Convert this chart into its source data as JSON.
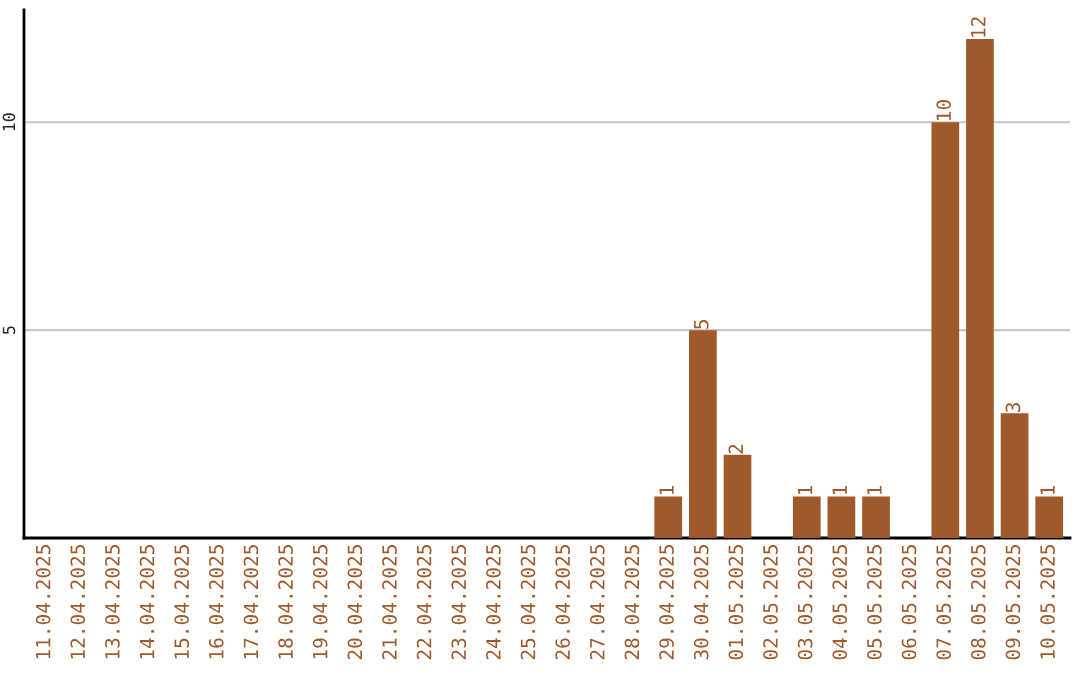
{
  "chart_data": {
    "type": "bar",
    "categories": [
      "11.04.2025",
      "12.04.2025",
      "13.04.2025",
      "14.04.2025",
      "15.04.2025",
      "16.04.2025",
      "17.04.2025",
      "18.04.2025",
      "19.04.2025",
      "20.04.2025",
      "21.04.2025",
      "22.04.2025",
      "23.04.2025",
      "24.04.2025",
      "25.04.2025",
      "26.04.2025",
      "27.04.2025",
      "28.04.2025",
      "29.04.2025",
      "30.04.2025",
      "01.05.2025",
      "02.05.2025",
      "03.05.2025",
      "04.05.2025",
      "05.05.2025",
      "06.05.2025",
      "07.05.2025",
      "08.05.2025",
      "09.05.2025",
      "10.05.2025"
    ],
    "values": [
      0,
      0,
      0,
      0,
      0,
      0,
      0,
      0,
      0,
      0,
      0,
      0,
      0,
      0,
      0,
      0,
      0,
      0,
      1,
      5,
      2,
      0,
      1,
      1,
      1,
      0,
      10,
      12,
      3,
      1
    ],
    "value_labels": [
      null,
      null,
      null,
      null,
      null,
      null,
      null,
      null,
      null,
      null,
      null,
      null,
      null,
      null,
      null,
      null,
      null,
      null,
      "1",
      "5",
      "2",
      null,
      "1",
      "1",
      "1",
      null,
      "10",
      "12",
      "3",
      "1"
    ],
    "color": "#a0592a",
    "ylim": [
      0,
      12.7
    ],
    "yticks": [
      5,
      10
    ],
    "grid": "y"
  }
}
